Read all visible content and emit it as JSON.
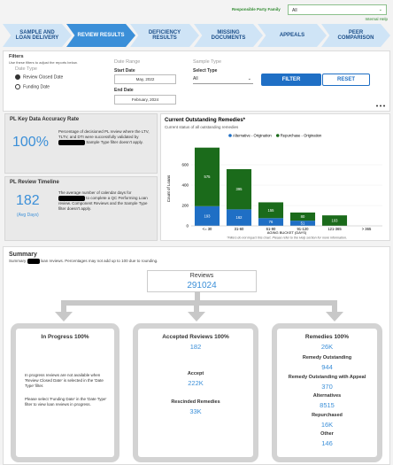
{
  "header": {
    "party_label": "Responsible Party Family",
    "party_value": "All",
    "help": "Internal Help"
  },
  "tabs": [
    "SAMPLE AND LOAN DELIVERY",
    "REVIEW RESULTS",
    "DEFICIENCY RESULTS",
    "MISSING DOCUMENTS",
    "APPEALS",
    "PEER COMPARISON"
  ],
  "filters": {
    "title": "Filters",
    "hint": "Use these filters to adjust the reports below.",
    "date_type": "Date Type",
    "options": [
      "Review Closed Date",
      "Funding Date"
    ],
    "date_range": "Date Range",
    "start_label": "Start Date",
    "start_value": "May, 2022",
    "end_label": "End Date",
    "end_value": "February, 2024",
    "sample_type": "Sample Type",
    "select_type": "Select Type",
    "select_value": "All",
    "filter_button": "FILTER",
    "reset_button": "RESET"
  },
  "accuracy": {
    "title": "PL Key Data Accuracy Rate",
    "value": "100%",
    "text_before": "Percentage of decisioned PL review where the LTV, TLTV, and DTI were successfully validated by",
    "text_after": "Sample Type filter doesn't apply."
  },
  "timeline": {
    "title": "PL Review Timeline",
    "value": 182,
    "unit": "(Avg Days)",
    "text_before": "The average number of calendar days for",
    "text_after": "to complete a QC Performing Loan review. Component Reviews and the Sample Type filter doesn't apply."
  },
  "chart_data": {
    "type": "stacked_bar",
    "title": "Current Outstanding Remedies*",
    "subtitle": "Current status of all outstanding remedies",
    "y_label": "Count of Loans",
    "x_label": "AGING BUCKET (DAYS)",
    "note": "*Filters do not impact this chart. Please refer to the Help section for more information.",
    "categories": [
      "<= 30",
      "31-60",
      "61-90",
      "91-120",
      "121-365",
      "> 365"
    ],
    "series": [
      {
        "name": "Alternative - Origination",
        "color": "#1f6fc5",
        "values": [
          193,
          162,
          76,
          51,
          null,
          null
        ]
      },
      {
        "name": "Repurchase - Origination",
        "color": "#1b6b1b",
        "values": [
          575,
          395,
          155,
          80,
          103,
          null
        ]
      }
    ],
    "ylim": [
      0,
      800
    ],
    "yticks": [
      0,
      200,
      400,
      600
    ],
    "grid": true
  },
  "summary": {
    "title": "Summary",
    "text_before": "Summary",
    "text_after": "loan reviews. Percentages may not add up to 100 due to rounding.",
    "reviews_label": "Reviews",
    "reviews_value": 291024,
    "in_progress": {
      "title": "In Progress 100%",
      "text1": "In progress reviews are not available when 'Review Closed Date' is selected in the 'Date Type' filter.",
      "text2": "Please select 'Funding Date' in the 'Date Type' filter to view loan reviews in progress."
    },
    "accepted": {
      "title": "Accepted Reviews 100%",
      "value": 182,
      "accept_label": "Accept",
      "accept_value": "222K",
      "rescinded_label": "Rescinded Remedies",
      "rescinded_value": "33K"
    },
    "remedies": {
      "title": "Remedies 100%",
      "value": "26K",
      "items": [
        {
          "label": "Remedy Outstanding",
          "value": 944
        },
        {
          "label": "Remedy Outstanding with Appeal",
          "value": 370
        },
        {
          "label": "Alternatives",
          "value": 8515
        },
        {
          "label": "Repurchased",
          "value": "16K"
        },
        {
          "label": "Other",
          "value": 146
        }
      ]
    }
  }
}
